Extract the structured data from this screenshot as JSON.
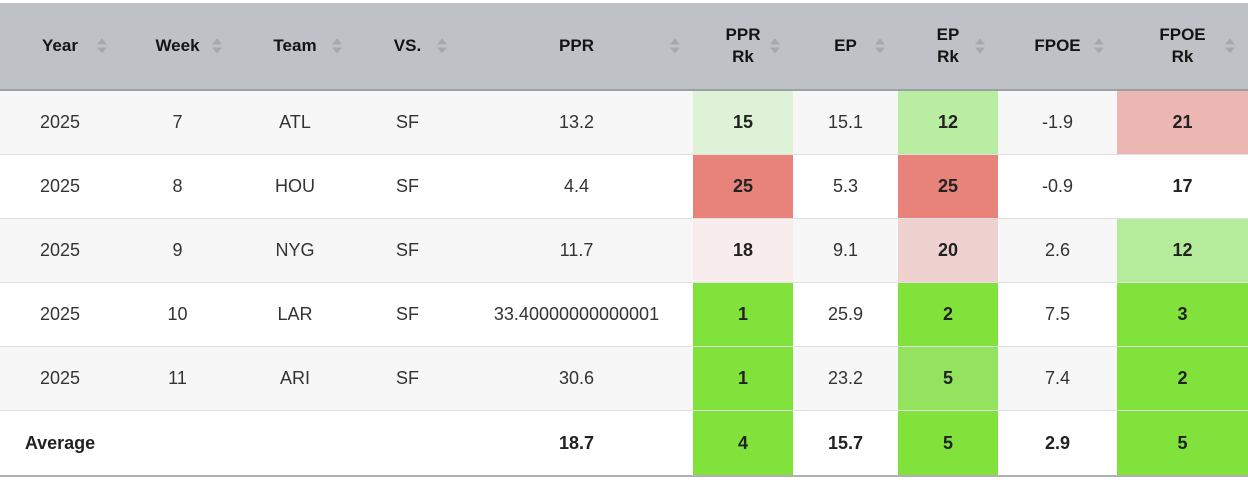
{
  "table": {
    "columns": [
      {
        "label": "Year"
      },
      {
        "label": "Week"
      },
      {
        "label": "Team"
      },
      {
        "label": "VS."
      },
      {
        "label": "PPR"
      },
      {
        "label": "PPR\nRk"
      },
      {
        "label": "EP"
      },
      {
        "label": "EP\nRk"
      },
      {
        "label": "FPOE"
      },
      {
        "label": "FPOE\nRk"
      }
    ],
    "rows": [
      {
        "year": "2025",
        "week": "7",
        "team": "ATL",
        "vs": "SF",
        "ppr": "13.2",
        "ppr_rk": "15",
        "ep": "15.1",
        "ep_rk": "12",
        "fpoe": "-1.9",
        "fpoe_rk": "21",
        "ppr_rk_bg": "#def2d7",
        "ep_rk_bg": "#b9eda1",
        "fpoe_rk_bg": "#ecb6b3"
      },
      {
        "year": "2025",
        "week": "8",
        "team": "HOU",
        "vs": "SF",
        "ppr": "4.4",
        "ppr_rk": "25",
        "ep": "5.3",
        "ep_rk": "25",
        "fpoe": "-0.9",
        "fpoe_rk": "17",
        "ppr_rk_bg": "#e8837b",
        "ep_rk_bg": "#e8837b",
        "fpoe_rk_bg": ""
      },
      {
        "year": "2025",
        "week": "9",
        "team": "NYG",
        "vs": "SF",
        "ppr": "11.7",
        "ppr_rk": "18",
        "ep": "9.1",
        "ep_rk": "20",
        "fpoe": "2.6",
        "fpoe_rk": "12",
        "ppr_rk_bg": "#f8edec",
        "ep_rk_bg": "#efd2d0",
        "fpoe_rk_bg": "#b4ec9b"
      },
      {
        "year": "2025",
        "week": "10",
        "team": "LAR",
        "vs": "SF",
        "ppr": "33.40000000000001",
        "ppr_rk": "1",
        "ep": "25.9",
        "ep_rk": "2",
        "fpoe": "7.5",
        "fpoe_rk": "3",
        "ppr_rk_bg": "#82e23c",
        "ep_rk_bg": "#82e23c",
        "fpoe_rk_bg": "#82e23c"
      },
      {
        "year": "2025",
        "week": "11",
        "team": "ARI",
        "vs": "SF",
        "ppr": "30.6",
        "ppr_rk": "1",
        "ep": "23.2",
        "ep_rk": "5",
        "fpoe": "7.4",
        "fpoe_rk": "2",
        "ppr_rk_bg": "#82e23c",
        "ep_rk_bg": "#93e35e",
        "fpoe_rk_bg": "#82e23c"
      }
    ],
    "average": {
      "label": "Average",
      "ppr": "18.7",
      "ppr_rk": "4",
      "ep": "15.7",
      "ep_rk": "5",
      "fpoe": "2.9",
      "fpoe_rk": "5",
      "ppr_rk_bg": "#82e23c",
      "ep_rk_bg": "#82e23c",
      "fpoe_rk_bg": "#82e23c"
    }
  },
  "colors": {
    "header_bg": "#bec2c6",
    "rank_good": "#82e23c",
    "rank_bad": "#e8837b",
    "stripe": "#f7f7f7"
  }
}
